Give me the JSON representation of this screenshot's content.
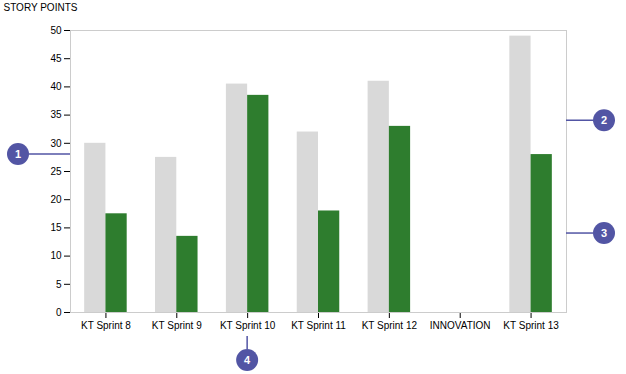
{
  "chart_data": {
    "type": "bar",
    "categories": [
      "KT Sprint 8",
      "KT Sprint 9",
      "KT Sprint 10",
      "KT Sprint 11",
      "KT Sprint 12",
      "INNOVATION",
      "KT Sprint 13"
    ],
    "series": [
      {
        "color": "#d9d9d9",
        "values": [
          30,
          27.5,
          40.5,
          32,
          41,
          0,
          49
        ]
      },
      {
        "color": "#2e7d2e",
        "values": [
          17.5,
          13.5,
          38.5,
          18,
          33,
          0,
          28
        ]
      }
    ],
    "ylabel": "STORY POINTS",
    "ylim": [
      0,
      50
    ],
    "yticks": [
      0,
      5,
      10,
      15,
      20,
      25,
      30,
      35,
      40,
      45,
      50
    ],
    "grid": false,
    "annotations": [
      {
        "text": "1",
        "y": 28,
        "color": "#5255a4"
      },
      {
        "text": "2",
        "y": 34,
        "category": "KT Sprint 13",
        "color": "#5255a4"
      },
      {
        "text": "3",
        "y": 14,
        "category": "KT Sprint 13",
        "color": "#5255a4"
      },
      {
        "text": "4",
        "category": "KT Sprint 10",
        "color": "#5255a4"
      }
    ]
  }
}
